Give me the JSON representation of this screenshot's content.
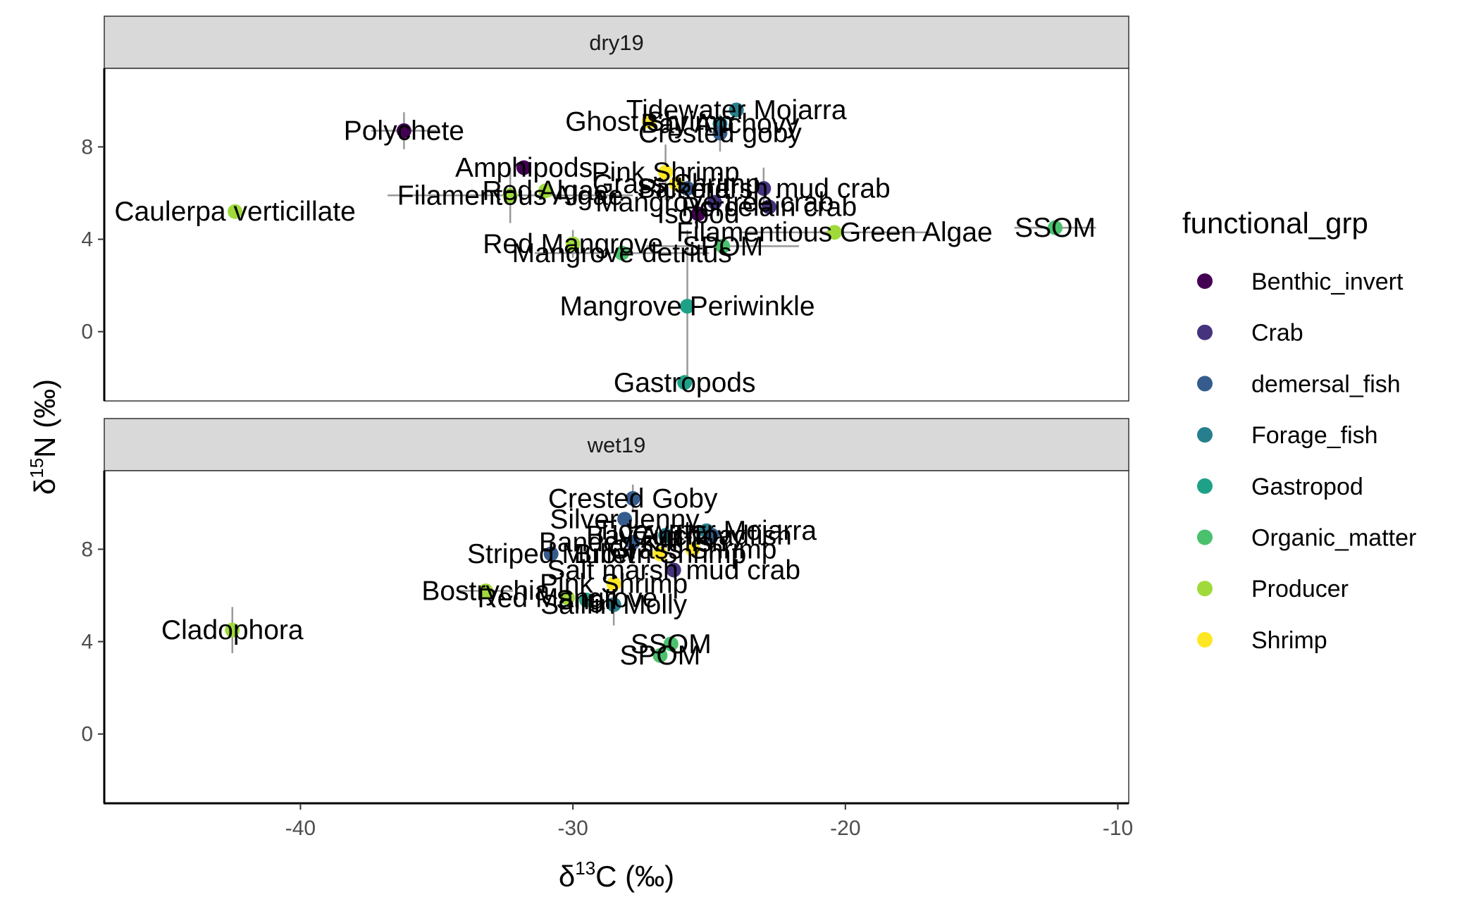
{
  "chart_data": {
    "type": "scatter",
    "xlabel": {
      "base": "δ",
      "sup": "13",
      "rest": "C (‰)"
    },
    "ylabel": {
      "base": "δ",
      "sup": "15",
      "rest": "N (‰)"
    },
    "xlim": [
      -47.2,
      -9.6
    ],
    "ylim": [
      -3.0,
      11.4
    ],
    "x_ticks": [
      -40,
      -30,
      -20,
      -10
    ],
    "x_tick_labels": [
      "-40",
      "-30",
      "-20",
      "-10"
    ],
    "y_ticks": [
      0,
      4,
      8
    ],
    "y_tick_labels": [
      "0",
      "4",
      "8"
    ],
    "legend": {
      "title": "functional_grp",
      "position": "right",
      "groups": [
        {
          "name": "Benthic_invert",
          "color": "#440154"
        },
        {
          "name": "Crab",
          "color": "#46337E"
        },
        {
          "name": "demersal_fish",
          "color": "#365C8D"
        },
        {
          "name": "Forage_fish",
          "color": "#277F8E"
        },
        {
          "name": "Gastropod",
          "color": "#1FA187"
        },
        {
          "name": "Organic_matter",
          "color": "#4AC16D"
        },
        {
          "name": "Producer",
          "color": "#9FDA3A"
        },
        {
          "name": "Shrimp",
          "color": "#FDE725"
        }
      ]
    },
    "panels": [
      {
        "label": "dry19",
        "points": [
          {
            "label": "Polychete",
            "group": "Benthic_invert",
            "x": -36.2,
            "y": 8.7,
            "xerr": 1.2,
            "yerr": 0.8
          },
          {
            "label": "Amphipods",
            "group": "Benthic_invert",
            "x": -31.8,
            "y": 7.1
          },
          {
            "label": "Caulerpa verticillate",
            "group": "Producer",
            "x": -42.4,
            "y": 5.2
          },
          {
            "label": "Filamentous Algae",
            "group": "Producer",
            "x": -32.3,
            "y": 5.9,
            "xerr": 4.5,
            "yerr": 1.2
          },
          {
            "label": "Red Algae",
            "group": "Producer",
            "x": -31.0,
            "y": 6.1
          },
          {
            "label": "Ghost Shrimp",
            "group": "Shrimp",
            "x": -27.2,
            "y": 9.1
          },
          {
            "label": "Bay Anchovy",
            "group": "Forage_fish",
            "x": -24.6,
            "y": 9.0
          },
          {
            "label": "Tidewater Mojarra",
            "group": "Forage_fish",
            "x": -24.0,
            "y": 9.6
          },
          {
            "label": "Crested goby",
            "group": "demersal_fish",
            "x": -24.6,
            "y": 8.6,
            "yerr": 0.8
          },
          {
            "label": "Pink Shrimp",
            "group": "Shrimp",
            "x": -26.6,
            "y": 6.9,
            "yerr": 1.2
          },
          {
            "label": "Grass Shrimp",
            "group": "Shrimp",
            "x": -26.2,
            "y": 6.4
          },
          {
            "label": "Pickerel",
            "group": "demersal_fish",
            "x": -25.8,
            "y": 6.2
          },
          {
            "label": "Salt marsh mud crab",
            "group": "Crab",
            "x": -23.0,
            "y": 6.2,
            "yerr": 0.9
          },
          {
            "label": "Mangrove tree crab",
            "group": "Crab",
            "x": -24.8,
            "y": 5.6
          },
          {
            "label": "Porcelain crab",
            "group": "Crab",
            "x": -22.8,
            "y": 5.4
          },
          {
            "label": "Isopod",
            "group": "Benthic_invert",
            "x": -25.4,
            "y": 5.1
          },
          {
            "label": "Filamentious Green Algae",
            "group": "Producer",
            "x": -20.4,
            "y": 4.3,
            "xerr": 3.5
          },
          {
            "label": "SSOM",
            "group": "Organic_matter",
            "x": -12.3,
            "y": 4.5,
            "xerr": 1.5
          },
          {
            "label": "Red Mangrove",
            "group": "Producer",
            "x": -30.0,
            "y": 3.8,
            "yerr": 0.6
          },
          {
            "label": "SPOM",
            "group": "Organic_matter",
            "x": -24.5,
            "y": 3.7,
            "xerr": 2.8
          },
          {
            "label": "Mangrove detritus",
            "group": "Organic_matter",
            "x": -28.2,
            "y": 3.4,
            "xerr": 3.2
          },
          {
            "label": "Mangrove Periwinkle",
            "group": "Gastropod",
            "x": -25.8,
            "y": 1.1,
            "yerr": 3.3
          },
          {
            "label": "Gastropods",
            "group": "Gastropod",
            "x": -25.9,
            "y": -2.2
          }
        ]
      },
      {
        "label": "wet19",
        "points": [
          {
            "label": "Crested Goby",
            "group": "demersal_fish",
            "x": -27.8,
            "y": 10.2,
            "yerr": 0.6
          },
          {
            "label": "Silver Jenny",
            "group": "demersal_fish",
            "x": -28.1,
            "y": 9.3
          },
          {
            "label": "Tidewater Mojarra",
            "group": "Forage_fish",
            "x": -25.1,
            "y": 8.8
          },
          {
            "label": "Bay Anchovy",
            "group": "Forage_fish",
            "x": -26.6,
            "y": 8.6
          },
          {
            "label": "Gulf Toadfish",
            "group": "demersal_fish",
            "x": -24.9,
            "y": 8.6
          },
          {
            "label": "Banded Killifish",
            "group": "demersal_fish",
            "x": -27.8,
            "y": 8.3
          },
          {
            "label": "Grass Shrimp",
            "group": "Shrimp",
            "x": -25.6,
            "y": 8.0
          },
          {
            "label": "Brown Shrimp",
            "group": "Shrimp",
            "x": -26.8,
            "y": 7.8
          },
          {
            "label": "Striped Mullet",
            "group": "demersal_fish",
            "x": -30.8,
            "y": 7.8
          },
          {
            "label": "Salt marsh mud crab",
            "group": "Crab",
            "x": -26.3,
            "y": 7.1
          },
          {
            "label": "Pink Shrimp",
            "group": "Shrimp",
            "x": -28.5,
            "y": 6.5
          },
          {
            "label": "Bostrychia",
            "group": "Producer",
            "x": -33.2,
            "y": 6.2,
            "xerr": 1.0
          },
          {
            "label": "Red Mangrove",
            "group": "Producer",
            "x": -30.2,
            "y": 5.9
          },
          {
            "label": "Sailfin Molly",
            "group": "Forage_fish",
            "x": -28.5,
            "y": 5.6,
            "yerr": 0.9
          },
          {
            "label": "Snail",
            "group": "Gastropod",
            "x": -29.5,
            "y": 5.8
          },
          {
            "label": "Cladophora",
            "group": "Producer",
            "x": -42.5,
            "y": 4.5,
            "yerr": 1.0
          },
          {
            "label": "SSOM",
            "group": "Organic_matter",
            "x": -26.4,
            "y": 3.9
          },
          {
            "label": "SPOM",
            "group": "Organic_matter",
            "x": -26.8,
            "y": 3.4
          }
        ]
      }
    ]
  }
}
